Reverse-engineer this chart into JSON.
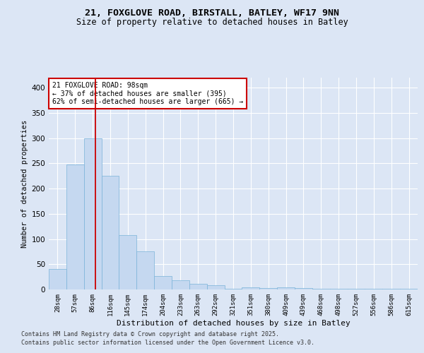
{
  "title_line1": "21, FOXGLOVE ROAD, BIRSTALL, BATLEY, WF17 9NN",
  "title_line2": "Size of property relative to detached houses in Batley",
  "xlabel": "Distribution of detached houses by size in Batley",
  "ylabel": "Number of detached properties",
  "categories": [
    "28sqm",
    "57sqm",
    "86sqm",
    "116sqm",
    "145sqm",
    "174sqm",
    "204sqm",
    "233sqm",
    "263sqm",
    "292sqm",
    "321sqm",
    "351sqm",
    "380sqm",
    "409sqm",
    "439sqm",
    "468sqm",
    "498sqm",
    "527sqm",
    "556sqm",
    "586sqm",
    "615sqm"
  ],
  "values": [
    40,
    248,
    300,
    225,
    108,
    75,
    27,
    18,
    11,
    9,
    2,
    4,
    3,
    4,
    3,
    2,
    1,
    1,
    1,
    1,
    2
  ],
  "bar_color": "#c5d8f0",
  "bar_edge_color": "#7ab3d9",
  "vline_color": "#cc0000",
  "vline_x_index": 2.14,
  "annotation_text": "21 FOXGLOVE ROAD: 98sqm\n← 37% of detached houses are smaller (395)\n62% of semi-detached houses are larger (665) →",
  "annotation_box_color": "#ffffff",
  "annotation_box_edge": "#cc0000",
  "background_color": "#dce6f5",
  "grid_color": "#ffffff",
  "ylim": [
    0,
    420
  ],
  "yticks": [
    0,
    50,
    100,
    150,
    200,
    250,
    300,
    350,
    400
  ],
  "footnote1": "Contains HM Land Registry data © Crown copyright and database right 2025.",
  "footnote2": "Contains public sector information licensed under the Open Government Licence v3.0."
}
